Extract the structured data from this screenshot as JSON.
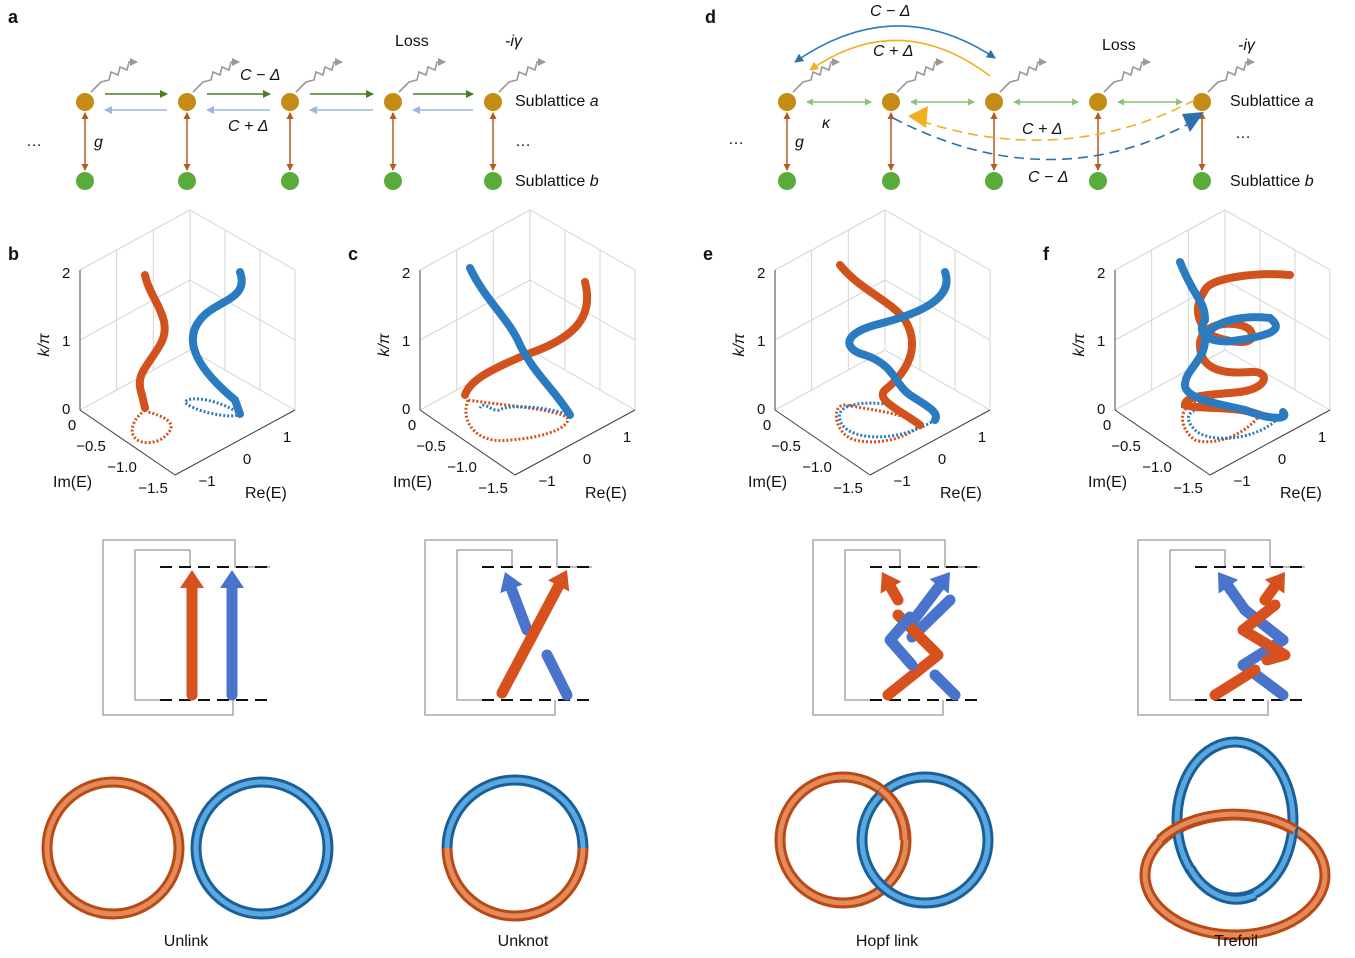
{
  "panel_labels": [
    "a",
    "b",
    "c",
    "d",
    "e",
    "f"
  ],
  "lattice": {
    "loss": "Loss",
    "gamma": "-iγ",
    "c_minus": "C − Δ",
    "c_plus": "C + Δ",
    "sublattice": "Sublattice",
    "a": "a",
    "b": "b",
    "g": "g",
    "kappa": "κ",
    "ellipsis": "…"
  },
  "axes": {
    "z_label": "k/π",
    "y_label": "Im(E)",
    "x_label": "Re(E)",
    "z_ticks": [
      "0",
      "1",
      "2"
    ],
    "y_ticks": [
      "0",
      "−0.5",
      "−1.0",
      "−1.5"
    ],
    "x_ticks": [
      "−1",
      "0",
      "1"
    ]
  },
  "knots": [
    "Unlink",
    "Unknot",
    "Hopf link",
    "Trefoil"
  ]
}
